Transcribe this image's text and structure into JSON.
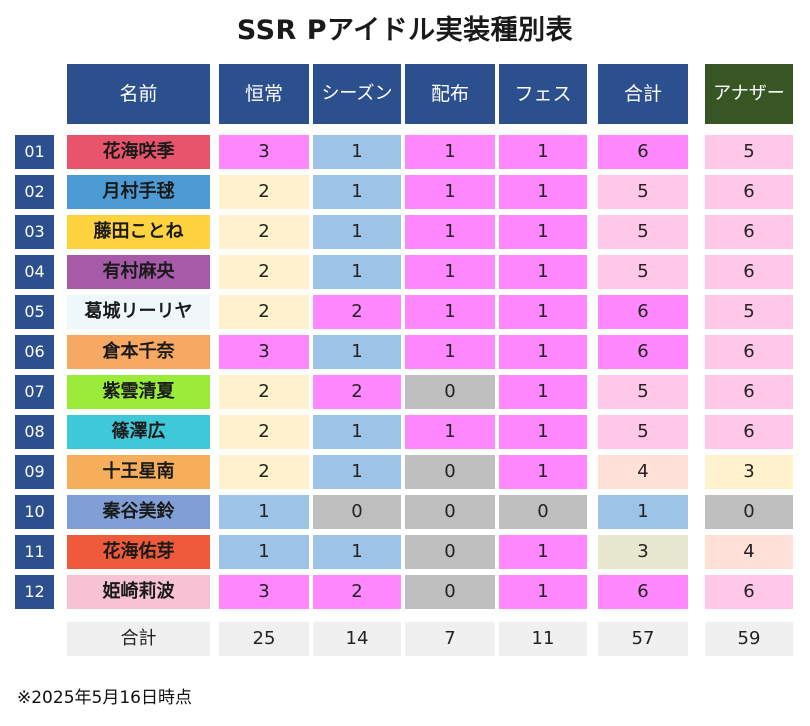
{
  "title": "SSR Pアイドル実装種別表",
  "headers": {
    "name": "名前",
    "regular": "恒常",
    "season": "シーズン",
    "distribution": "配布",
    "fes": "フェス",
    "total": "合計",
    "another": "アナザー"
  },
  "colors": {
    "header_blue": "#2c4f8e",
    "header_green": "#375623",
    "magenta": "#ff88ff",
    "light_blue": "#9dc3e6",
    "cream": "#fff2cc",
    "gray": "#bfbfbf",
    "pink_light": "#ffc8e8",
    "peach": "#ffe0d8",
    "beige": "#e8e8d0"
  },
  "rows": [
    {
      "no": "01",
      "name": "花海咲季",
      "name_bg": "#e8546c",
      "regular": "3",
      "season": "1",
      "distribution": "1",
      "fes": "1",
      "total": "6",
      "another": "5"
    },
    {
      "no": "02",
      "name": "月村手毬",
      "name_bg": "#4c9bd4",
      "regular": "2",
      "season": "1",
      "distribution": "1",
      "fes": "1",
      "total": "5",
      "another": "6"
    },
    {
      "no": "03",
      "name": "藤田ことね",
      "name_bg": "#ffd23f",
      "regular": "2",
      "season": "1",
      "distribution": "1",
      "fes": "1",
      "total": "5",
      "another": "6"
    },
    {
      "no": "04",
      "name": "有村麻央",
      "name_bg": "#a65aa8",
      "regular": "2",
      "season": "1",
      "distribution": "1",
      "fes": "1",
      "total": "5",
      "another": "6"
    },
    {
      "no": "05",
      "name": "葛城リーリヤ",
      "name_bg": "#eef8fb",
      "regular": "2",
      "season": "2",
      "distribution": "1",
      "fes": "1",
      "total": "6",
      "another": "5"
    },
    {
      "no": "06",
      "name": "倉本千奈",
      "name_bg": "#f7a863",
      "regular": "3",
      "season": "1",
      "distribution": "1",
      "fes": "1",
      "total": "6",
      "another": "6"
    },
    {
      "no": "07",
      "name": "紫雲清夏",
      "name_bg": "#9bec3a",
      "regular": "2",
      "season": "2",
      "distribution": "0",
      "fes": "1",
      "total": "5",
      "another": "6"
    },
    {
      "no": "08",
      "name": "篠澤広",
      "name_bg": "#3fc8d8",
      "regular": "2",
      "season": "1",
      "distribution": "1",
      "fes": "1",
      "total": "5",
      "another": "6"
    },
    {
      "no": "09",
      "name": "十王星南",
      "name_bg": "#f7ae5a",
      "regular": "2",
      "season": "1",
      "distribution": "0",
      "fes": "1",
      "total": "4",
      "another": "3"
    },
    {
      "no": "10",
      "name": "秦谷美鈴",
      "name_bg": "#7f9fd6",
      "regular": "1",
      "season": "0",
      "distribution": "0",
      "fes": "0",
      "total": "1",
      "another": "0"
    },
    {
      "no": "11",
      "name": "花海佑芽",
      "name_bg": "#ee5a3a",
      "regular": "1",
      "season": "1",
      "distribution": "0",
      "fes": "1",
      "total": "3",
      "another": "4"
    },
    {
      "no": "12",
      "name": "姫崎莉波",
      "name_bg": "#f7c3d4",
      "regular": "3",
      "season": "2",
      "distribution": "0",
      "fes": "1",
      "total": "6",
      "another": "6"
    }
  ],
  "totals": {
    "label": "合計",
    "regular": "25",
    "season": "14",
    "distribution": "7",
    "fes": "11",
    "total": "57",
    "another": "59"
  },
  "footer": "※2025年5月16日時点"
}
